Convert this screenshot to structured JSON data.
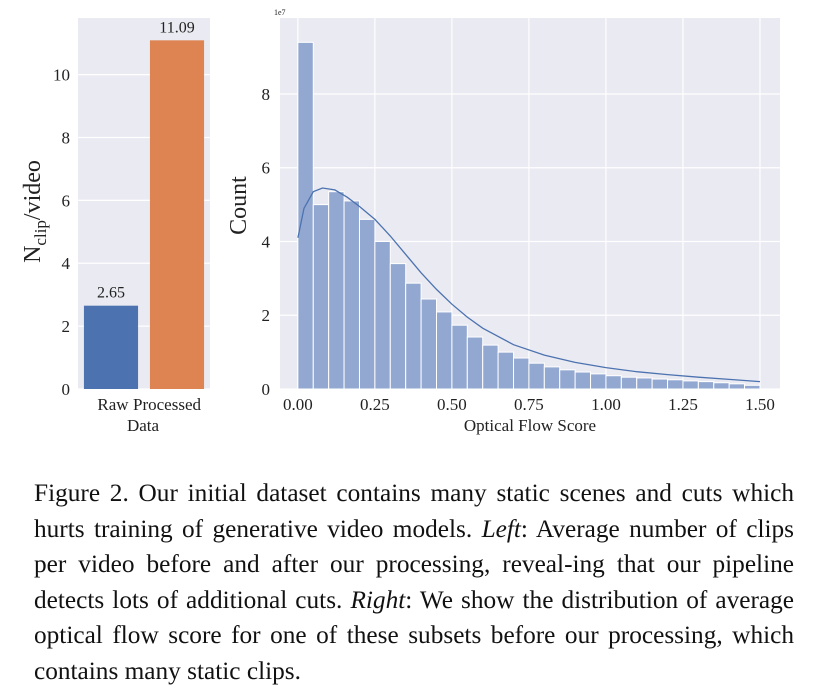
{
  "chart_data": [
    {
      "type": "bar",
      "categories": [
        "Raw",
        "Processed"
      ],
      "values": [
        2.65,
        11.09
      ],
      "colors": [
        "#4c72b0",
        "#dd8452"
      ],
      "ylim": [
        0,
        11.8
      ],
      "yticks": [
        0,
        2,
        4,
        6,
        8,
        10
      ],
      "xlabel": "Data",
      "ylabel": {
        "base": "N",
        "sub": "clip",
        "rest": "/video"
      },
      "grid": true
    },
    {
      "type": "histogram",
      "bins": [
        0,
        0.05,
        0.1,
        0.15,
        0.2,
        0.25,
        0.3,
        0.35,
        0.4,
        0.45,
        0.5,
        0.55,
        0.6,
        0.65,
        0.7,
        0.75,
        0.8,
        0.85,
        0.9,
        0.95,
        1.0,
        1.05,
        1.1,
        1.15,
        1.2,
        1.25,
        1.3,
        1.35,
        1.4,
        1.45,
        1.5
      ],
      "counts": [
        9.4,
        5.0,
        5.35,
        5.1,
        4.6,
        4.0,
        3.4,
        2.87,
        2.44,
        2.09,
        1.73,
        1.41,
        1.19,
        1.0,
        0.84,
        0.7,
        0.6,
        0.52,
        0.46,
        0.41,
        0.36,
        0.32,
        0.3,
        0.27,
        0.25,
        0.22,
        0.2,
        0.17,
        0.14,
        0.1
      ],
      "color": "#92a8d1",
      "kde": {
        "x": [
          0,
          0.02,
          0.05,
          0.08,
          0.12,
          0.16,
          0.2,
          0.25,
          0.3,
          0.35,
          0.4,
          0.45,
          0.5,
          0.55,
          0.6,
          0.7,
          0.8,
          0.9,
          1.0,
          1.1,
          1.2,
          1.3,
          1.4,
          1.5
        ],
        "values": [
          4.1,
          4.9,
          5.35,
          5.45,
          5.4,
          5.2,
          4.95,
          4.6,
          4.15,
          3.65,
          3.15,
          2.7,
          2.3,
          1.95,
          1.65,
          1.2,
          0.92,
          0.72,
          0.58,
          0.47,
          0.39,
          0.32,
          0.26,
          0.2
        ],
        "color": "#4c72b0"
      },
      "xlim": [
        -0.058,
        1.565
      ],
      "ylim": [
        0,
        10.06
      ],
      "xticks": [
        {
          "value": 0,
          "label": "0.00"
        },
        {
          "value": 0.25,
          "label": "0.25"
        },
        {
          "value": 0.5,
          "label": "0.50"
        },
        {
          "value": 0.75,
          "label": "0.75"
        },
        {
          "value": 1.0,
          "label": "1.00"
        },
        {
          "value": 1.25,
          "label": "1.25"
        },
        {
          "value": 1.5,
          "label": "1.50"
        }
      ],
      "yticks": [
        0,
        2,
        4,
        6,
        8
      ],
      "y_offset_label": "1e7",
      "xlabel": "Optical Flow Score",
      "ylabel": "Count",
      "grid": true
    }
  ],
  "caption": {
    "segments": [
      {
        "text": "Figure 2. Our initial dataset contains many static scenes and cuts which hurts training of generative video models. ",
        "italic": false
      },
      {
        "text": "Left",
        "italic": true
      },
      {
        "text": ": Average number of clips per video before and after our processing, reveal-ing that our pipeline detects lots of additional cuts. ",
        "italic": false
      },
      {
        "text": "Right",
        "italic": true
      },
      {
        "text": ": We show the distribution of average optical flow score for one of these subsets before our processing, which contains many static clips.",
        "italic": false
      }
    ]
  }
}
